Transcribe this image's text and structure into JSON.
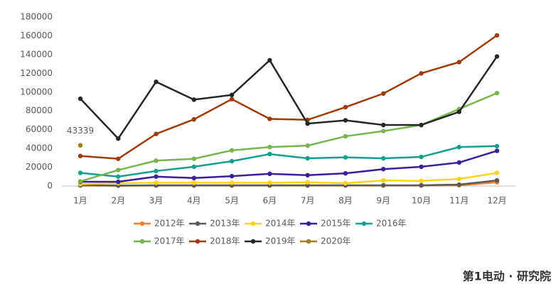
{
  "chart_data": {
    "type": "line",
    "categories": [
      "1月",
      "2月",
      "3月",
      "4月",
      "5月",
      "6月",
      "7月",
      "8月",
      "9月",
      "10月",
      "11月",
      "12月"
    ],
    "ylim": [
      0,
      180000
    ],
    "yticks": [
      0,
      20000,
      40000,
      60000,
      80000,
      100000,
      120000,
      140000,
      160000,
      180000
    ],
    "grid": false,
    "legend": "bottom",
    "series": [
      {
        "name": "2012年",
        "color": "#ed7d31",
        "values": [
          500,
          300,
          500,
          500,
          500,
          500,
          500,
          500,
          500,
          500,
          800,
          4000
        ]
      },
      {
        "name": "2013年",
        "color": "#595959",
        "values": [
          800,
          500,
          800,
          800,
          800,
          800,
          800,
          800,
          800,
          800,
          1500,
          6000
        ]
      },
      {
        "name": "2014年",
        "color": "#ffd319",
        "values": [
          2000,
          3000,
          3500,
          3500,
          3500,
          3500,
          4000,
          3000,
          6000,
          5500,
          7500,
          14000
        ]
      },
      {
        "name": "2015年",
        "color": "#3a1e9c",
        "values": [
          4500,
          4500,
          10000,
          8500,
          10500,
          13000,
          11500,
          13500,
          18000,
          20500,
          25000,
          37500
        ]
      },
      {
        "name": "2016年",
        "color": "#14a08c",
        "values": [
          14000,
          10000,
          16000,
          20500,
          26500,
          34000,
          29500,
          30500,
          29500,
          31000,
          41500,
          42500
        ]
      },
      {
        "name": "2017年",
        "color": "#78b450",
        "values": [
          5000,
          17000,
          27000,
          29000,
          38000,
          41500,
          43000,
          53000,
          58500,
          65000,
          82000,
          99000
        ]
      },
      {
        "name": "2018年",
        "color": "#9c3c0a",
        "values": [
          32000,
          29000,
          55500,
          71000,
          92500,
          71500,
          70500,
          84000,
          98500,
          120000,
          132000,
          160500
        ]
      },
      {
        "name": "2019年",
        "color": "#262626",
        "values": [
          93000,
          50500,
          111000,
          92000,
          97000,
          134000,
          66500,
          70000,
          65000,
          65000,
          79000,
          138000
        ]
      },
      {
        "name": "2020年",
        "color": "#9c8200",
        "values": [
          43339,
          null,
          null,
          null,
          null,
          null,
          null,
          null,
          null,
          null,
          null,
          null
        ]
      }
    ],
    "watermark": "第1电动 · 研究院"
  }
}
